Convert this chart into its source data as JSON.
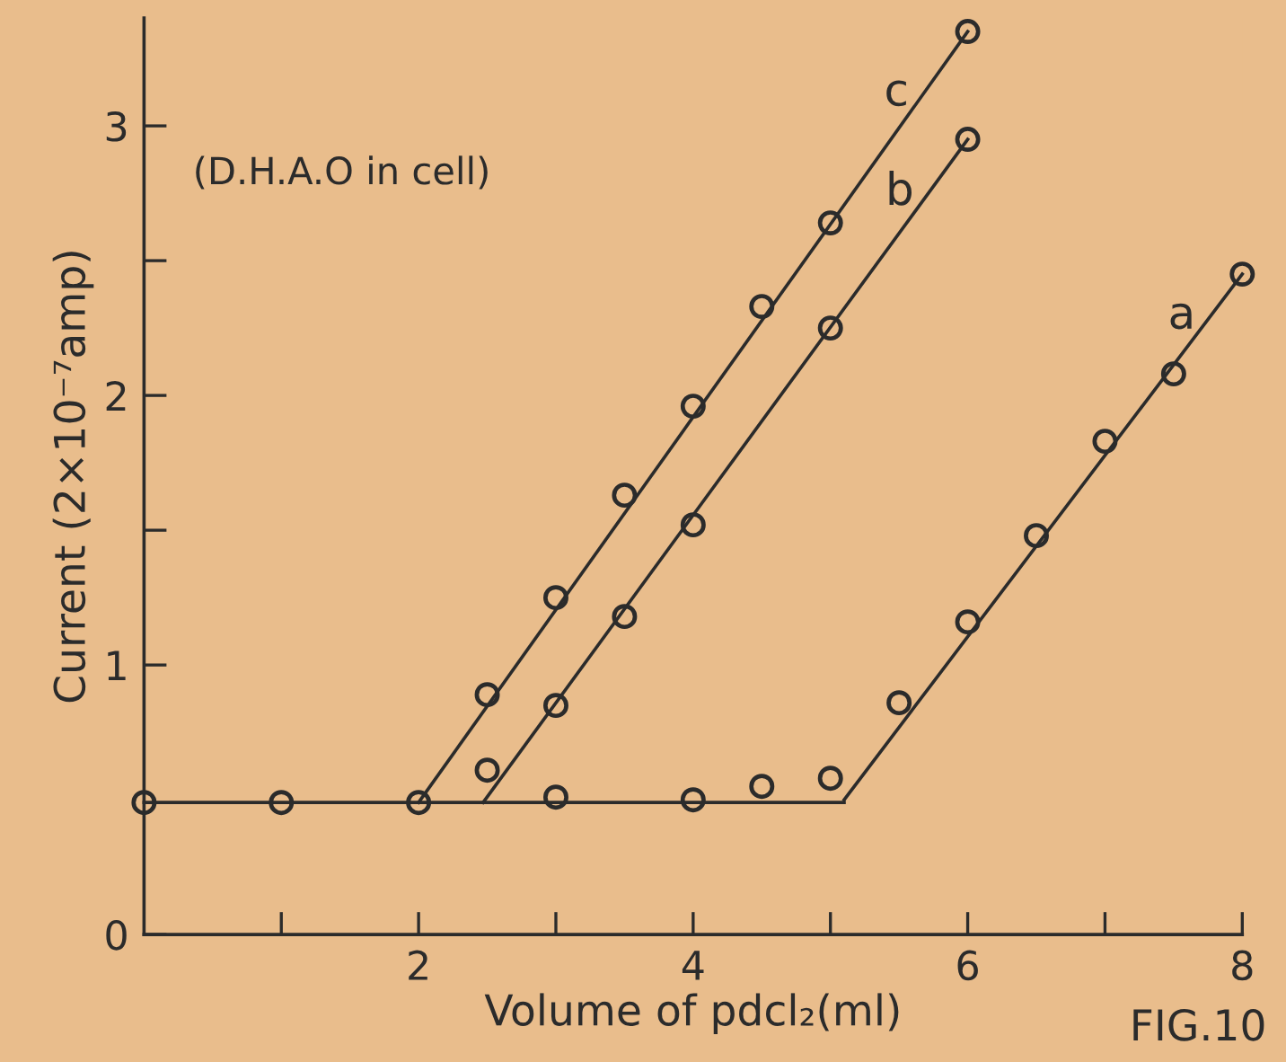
{
  "chart_data": {
    "type": "scatter",
    "xlabel": "Volume of pdcl₂(ml)",
    "ylabel": "Current (2×10⁻⁷amp)",
    "annotations": [
      "(D.H.A.O in cell)",
      "FIG.10"
    ],
    "xlim": [
      0,
      8
    ],
    "ylim": [
      0,
      3.4
    ],
    "xticks": [
      {
        "value": 1,
        "label": null
      },
      2,
      {
        "value": 3,
        "label": null
      },
      4,
      {
        "value": 5,
        "label": null
      },
      6,
      {
        "value": 7,
        "label": null
      },
      8
    ],
    "yticks": [
      0,
      1,
      {
        "value": 1.5,
        "label": null
      },
      2,
      {
        "value": 2.5,
        "label": null
      },
      3
    ],
    "marker": "circle",
    "line_style": "solid",
    "series": [
      {
        "type": "line",
        "marker": "none",
        "color": "#2b2b2b",
        "x": [
          0,
          5.1
        ],
        "values": [
          0.49,
          0.49
        ]
      },
      {
        "type": "line",
        "marker": "none",
        "name": "a",
        "color": "#2b2b2b",
        "x": [
          5.1,
          8
        ],
        "values": [
          0.5,
          2.45
        ]
      },
      {
        "type": "line",
        "marker": "none",
        "name": "b",
        "color": "#2b2b2b",
        "x": [
          2.47,
          6
        ],
        "values": [
          0.49,
          2.95
        ]
      },
      {
        "type": "line",
        "marker": "none",
        "name": "c",
        "color": "#2b2b2b",
        "x": [
          2,
          6
        ],
        "values": [
          0.49,
          3.35
        ]
      },
      {
        "color": "#2b2b2b",
        "x": [
          0,
          1,
          2,
          3,
          4,
          4.5,
          5
        ],
        "values": [
          0.49,
          0.49,
          0.49,
          0.51,
          0.5,
          0.55,
          0.58
        ]
      },
      {
        "color": "#2b2b2b",
        "x": [
          5.5,
          6,
          6.5,
          7,
          7.5,
          8
        ],
        "values": [
          0.86,
          1.16,
          1.48,
          1.83,
          2.08,
          2.45
        ]
      },
      {
        "color": "#2b2b2b",
        "x": [
          2.5,
          3,
          3.5,
          4,
          5,
          6
        ],
        "values": [
          0.61,
          0.85,
          1.18,
          1.52,
          2.25,
          2.95
        ]
      },
      {
        "color": "#2b2b2b",
        "x": [
          2.5,
          3,
          3.5,
          4,
          4.5,
          5,
          6
        ],
        "values": [
          0.89,
          1.25,
          1.63,
          1.96,
          2.33,
          2.64,
          3.35
        ]
      }
    ]
  }
}
